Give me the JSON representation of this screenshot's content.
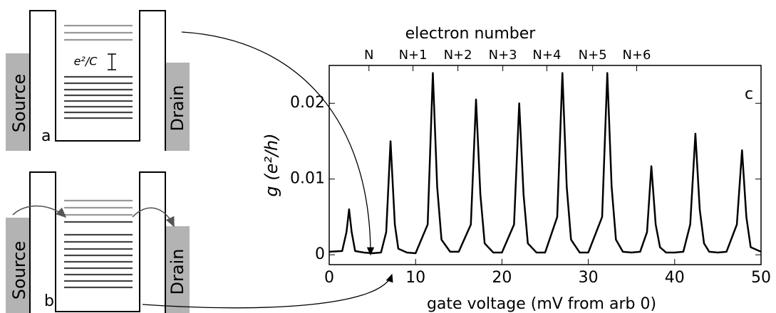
{
  "chart_data": {
    "type": "line",
    "x_label": "gate voltage (mV from arb 0)",
    "y_label": "g (e²/h)",
    "top_label": "electron number",
    "panel_label": "c",
    "x": [
      0,
      1.5,
      2.0,
      2.3,
      2.6,
      3.0,
      4,
      5,
      6,
      6.6,
      7.1,
      7.6,
      8.0,
      9,
      10,
      11.4,
      12.0,
      12.5,
      13,
      14,
      15,
      16.4,
      17.0,
      17.5,
      18,
      19,
      20,
      21.4,
      22.0,
      22.5,
      23,
      24,
      25,
      26.4,
      27.0,
      27.5,
      28,
      29,
      30,
      31.6,
      32.2,
      32.7,
      33.2,
      34,
      35,
      36,
      36.8,
      37.3,
      37.8,
      38.3,
      39,
      40,
      41,
      41.8,
      42.4,
      42.9,
      43.4,
      44,
      45,
      46,
      47.2,
      47.8,
      48.3,
      48.8,
      50
    ],
    "values": [
      0.0004,
      0.0005,
      0.003,
      0.006,
      0.003,
      0.0005,
      0.0003,
      0.0002,
      0.0003,
      0.003,
      0.015,
      0.004,
      0.0008,
      0.0003,
      0.0002,
      0.004,
      0.024,
      0.009,
      0.002,
      0.0004,
      0.0004,
      0.004,
      0.0205,
      0.008,
      0.0015,
      0.0003,
      0.0003,
      0.004,
      0.02,
      0.008,
      0.0015,
      0.0003,
      0.0003,
      0.005,
      0.024,
      0.009,
      0.002,
      0.0003,
      0.0003,
      0.005,
      0.024,
      0.009,
      0.002,
      0.0004,
      0.0003,
      0.0004,
      0.003,
      0.0117,
      0.004,
      0.001,
      0.0003,
      0.0003,
      0.0004,
      0.004,
      0.016,
      0.006,
      0.0015,
      0.0004,
      0.0003,
      0.0004,
      0.004,
      0.0138,
      0.005,
      0.001,
      0.0004
    ],
    "color": "#000000",
    "xlim": [
      0,
      50
    ],
    "xticks": [
      0,
      10,
      20,
      30,
      40,
      50
    ],
    "ylim": [
      -0.0013,
      0.025
    ],
    "yticks": [
      0,
      0.01,
      0.02
    ],
    "x2ticks": [
      {
        "value": 4.6,
        "label": "N"
      },
      {
        "value": 9.7,
        "label": "N+1"
      },
      {
        "value": 14.9,
        "label": "N+2"
      },
      {
        "value": 20.1,
        "label": "N+3"
      },
      {
        "value": 25.2,
        "label": "N+4"
      },
      {
        "value": 30.5,
        "label": "N+5"
      },
      {
        "value": 35.6,
        "label": "N+6"
      }
    ]
  },
  "diagram_a": {
    "source": "Source",
    "drain": "Drain",
    "panel": "a",
    "gap": "e²/C"
  },
  "diagram_b": {
    "source": "Source",
    "drain": "Drain",
    "panel": "b"
  }
}
